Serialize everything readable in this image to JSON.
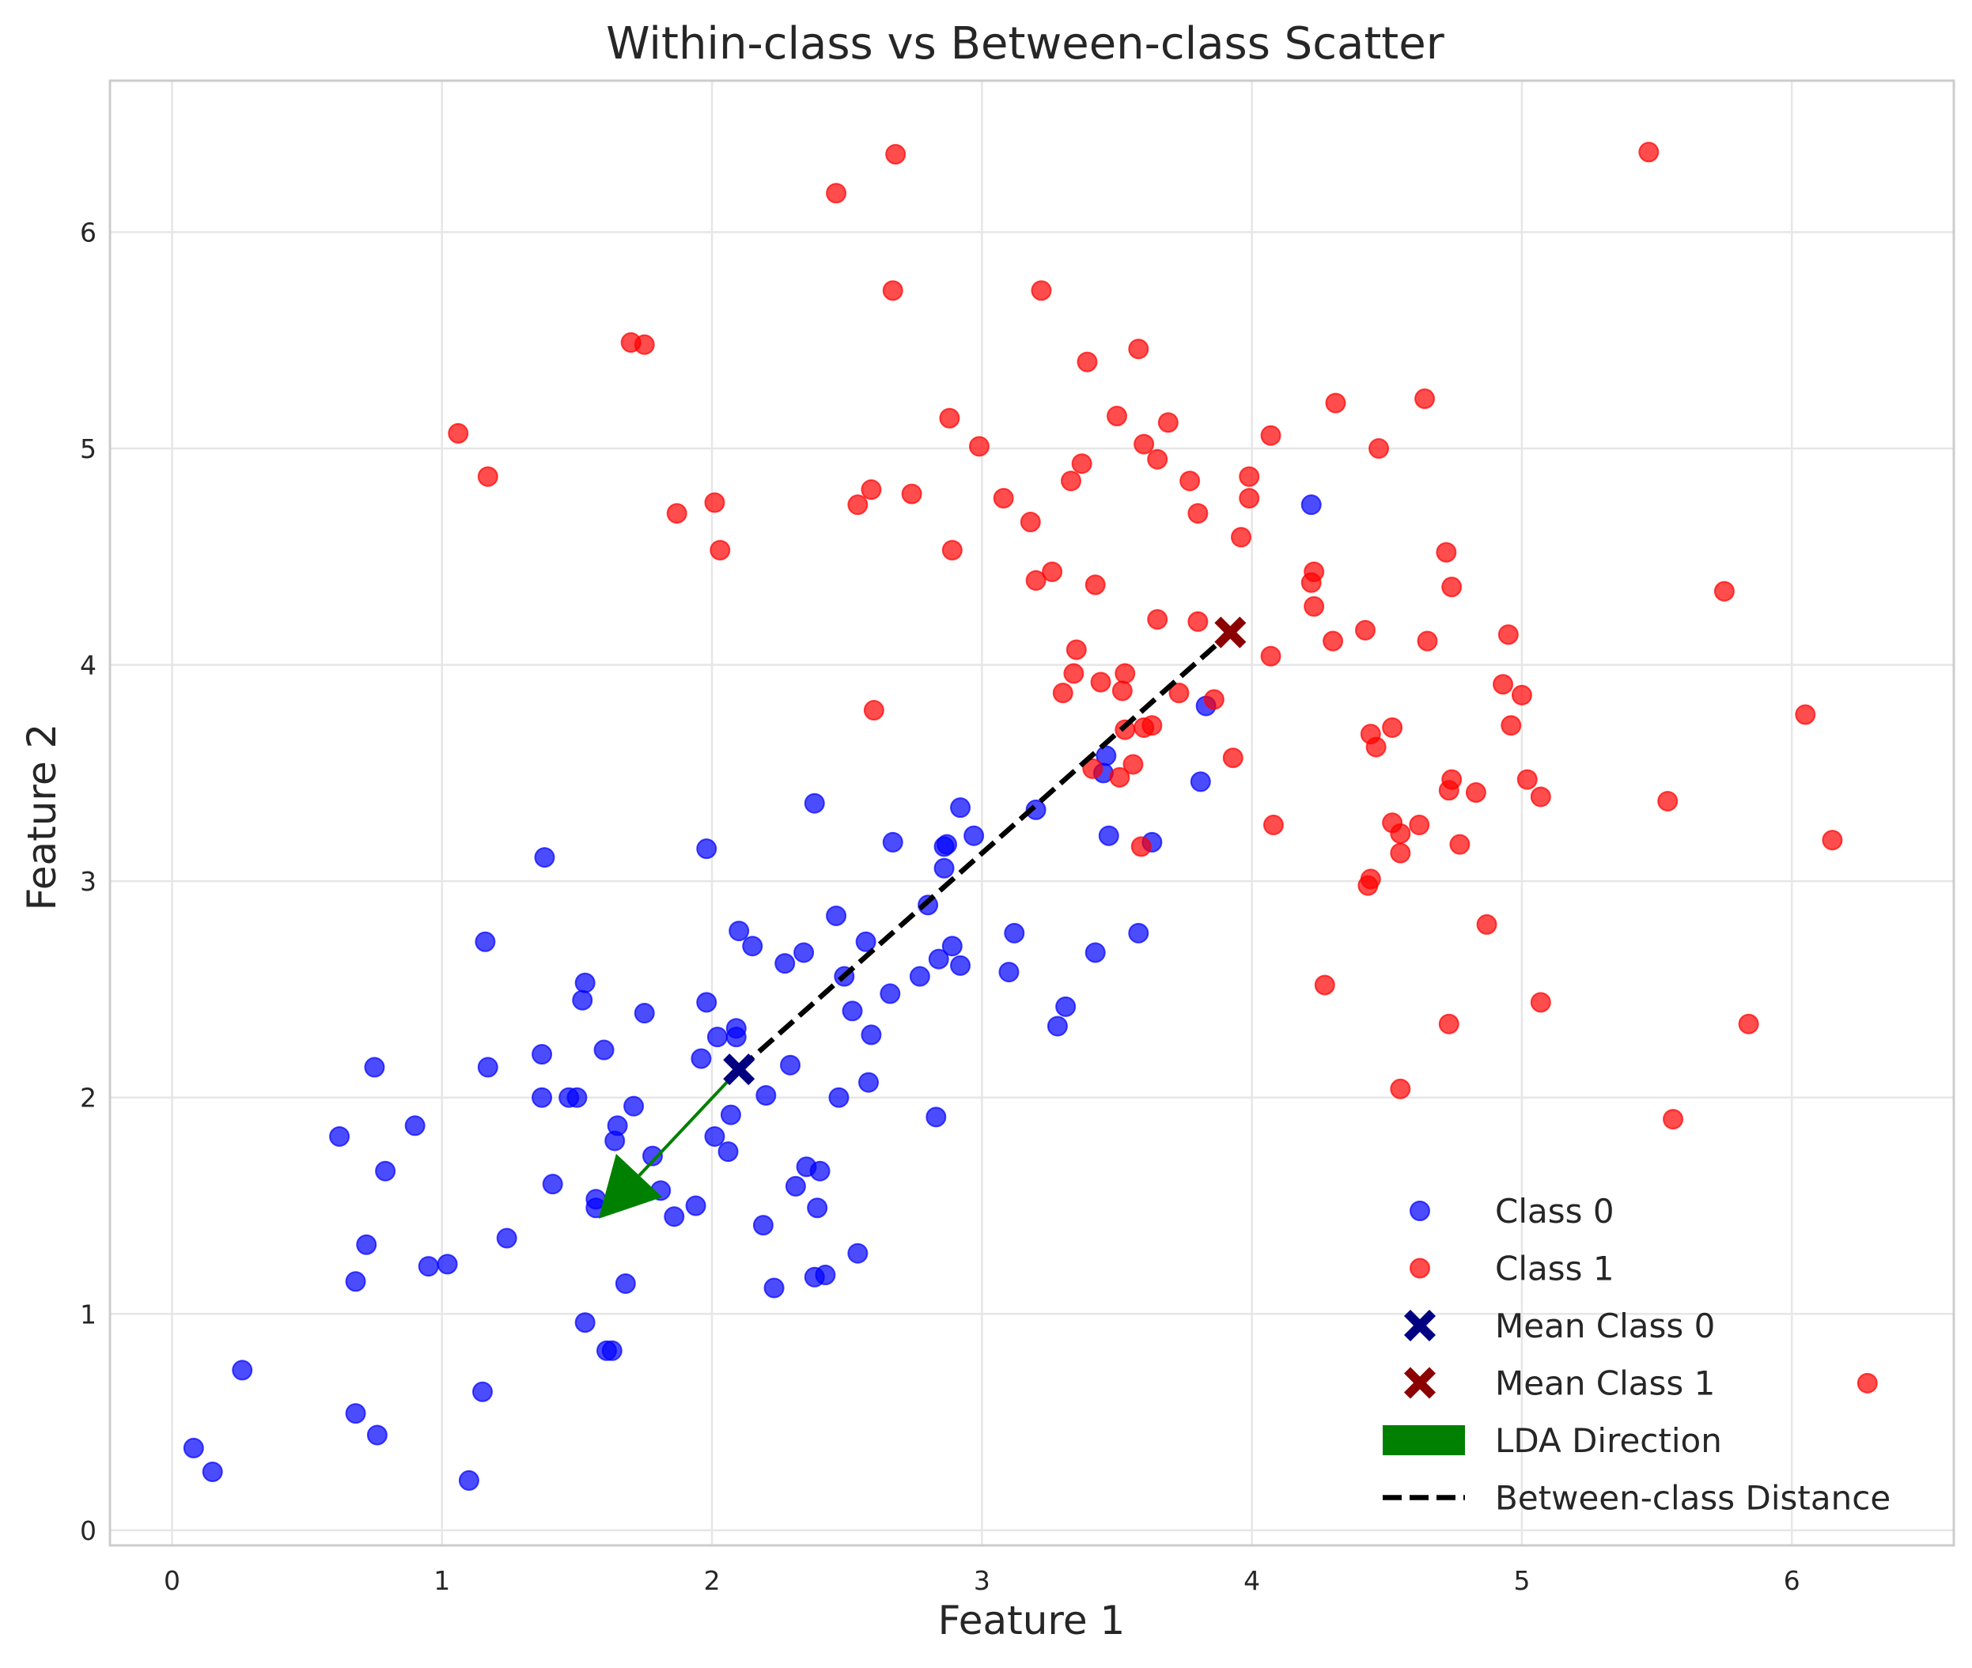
{
  "chart_data": {
    "type": "scatter",
    "title": "Within-class vs Between-class Scatter",
    "xlabel": "Feature 1",
    "ylabel": "Feature 2",
    "xlim": [
      -0.23,
      6.6
    ],
    "ylim": [
      -0.07,
      6.7
    ],
    "x_ticks": [
      0,
      1,
      2,
      3,
      4,
      5,
      6
    ],
    "y_ticks": [
      0,
      1,
      2,
      3,
      4,
      5,
      6
    ],
    "grid": true,
    "legend_position": "lower-right",
    "colors": {
      "class0": "#0000ff",
      "class1": "#ff0000",
      "mean0": "#000080",
      "mean1": "#8b0000",
      "lda": "#008000",
      "between": "#000000"
    },
    "legend": {
      "class0": "Class 0",
      "class1": "Class 1",
      "mean0": "Mean Class 0",
      "mean1": "Mean Class 1",
      "lda": "LDA Direction",
      "between": "Between-class Distance"
    },
    "series": [
      {
        "name": "Class 0",
        "points": [
          [
            0.08,
            0.38
          ],
          [
            0.15,
            0.27
          ],
          [
            0.26,
            0.74
          ],
          [
            0.62,
            1.82
          ],
          [
            0.68,
            1.15
          ],
          [
            0.68,
            0.54
          ],
          [
            0.72,
            1.32
          ],
          [
            0.75,
            2.14
          ],
          [
            0.76,
            0.44
          ],
          [
            0.79,
            1.66
          ],
          [
            0.9,
            1.87
          ],
          [
            0.95,
            1.22
          ],
          [
            1.02,
            1.23
          ],
          [
            1.1,
            0.23
          ],
          [
            1.15,
            0.64
          ],
          [
            1.16,
            2.72
          ],
          [
            1.17,
            2.14
          ],
          [
            1.24,
            1.35
          ],
          [
            1.37,
            2.2
          ],
          [
            1.37,
            2.0
          ],
          [
            1.38,
            3.11
          ],
          [
            1.41,
            1.6
          ],
          [
            1.47,
            2.0
          ],
          [
            1.5,
            2.0
          ],
          [
            1.53,
            2.53
          ],
          [
            1.52,
            2.45
          ],
          [
            1.53,
            0.96
          ],
          [
            1.57,
            1.53
          ],
          [
            1.57,
            1.49
          ],
          [
            1.6,
            2.22
          ],
          [
            1.61,
            0.83
          ],
          [
            1.63,
            0.83
          ],
          [
            1.64,
            1.8
          ],
          [
            1.65,
            1.87
          ],
          [
            1.68,
            1.14
          ],
          [
            1.71,
            1.96
          ],
          [
            1.75,
            2.39
          ],
          [
            1.78,
            1.73
          ],
          [
            1.81,
            1.57
          ],
          [
            1.86,
            1.45
          ],
          [
            1.94,
            1.5
          ],
          [
            1.96,
            2.18
          ],
          [
            1.98,
            2.44
          ],
          [
            1.98,
            3.15
          ],
          [
            2.01,
            1.82
          ],
          [
            2.02,
            2.28
          ],
          [
            2.06,
            1.75
          ],
          [
            2.07,
            1.92
          ],
          [
            2.09,
            2.28
          ],
          [
            2.09,
            2.32
          ],
          [
            2.1,
            2.77
          ],
          [
            2.15,
            2.7
          ],
          [
            2.19,
            1.41
          ],
          [
            2.2,
            2.01
          ],
          [
            2.23,
            1.12
          ],
          [
            2.27,
            2.62
          ],
          [
            2.29,
            2.15
          ],
          [
            2.31,
            1.59
          ],
          [
            2.34,
            2.67
          ],
          [
            2.35,
            1.68
          ],
          [
            2.38,
            3.36
          ],
          [
            2.38,
            1.17
          ],
          [
            2.39,
            1.49
          ],
          [
            2.4,
            1.66
          ],
          [
            2.42,
            1.18
          ],
          [
            2.46,
            2.84
          ],
          [
            2.47,
            2.0
          ],
          [
            2.49,
            2.56
          ],
          [
            2.52,
            2.4
          ],
          [
            2.54,
            1.28
          ],
          [
            2.57,
            2.72
          ],
          [
            2.58,
            2.07
          ],
          [
            2.59,
            2.29
          ],
          [
            2.66,
            2.48
          ],
          [
            2.67,
            3.18
          ],
          [
            2.77,
            2.56
          ],
          [
            2.8,
            2.89
          ],
          [
            2.83,
            1.91
          ],
          [
            2.84,
            2.64
          ],
          [
            2.86,
            3.16
          ],
          [
            2.86,
            3.06
          ],
          [
            2.87,
            3.17
          ],
          [
            2.89,
            2.7
          ],
          [
            2.92,
            2.61
          ],
          [
            2.92,
            3.34
          ],
          [
            2.97,
            3.21
          ],
          [
            3.1,
            2.58
          ],
          [
            3.12,
            2.76
          ],
          [
            3.2,
            3.33
          ],
          [
            3.28,
            2.33
          ],
          [
            3.31,
            2.42
          ],
          [
            3.42,
            2.67
          ],
          [
            3.45,
            3.5
          ],
          [
            3.46,
            3.58
          ],
          [
            3.47,
            3.21
          ],
          [
            3.58,
            2.76
          ],
          [
            3.63,
            3.18
          ],
          [
            3.81,
            3.46
          ],
          [
            3.83,
            3.81
          ],
          [
            4.22,
            4.74
          ]
        ]
      },
      {
        "name": "Class 1",
        "points": [
          [
            1.06,
            5.07
          ],
          [
            1.17,
            4.87
          ],
          [
            1.7,
            5.49
          ],
          [
            1.75,
            5.48
          ],
          [
            1.87,
            4.7
          ],
          [
            2.01,
            4.75
          ],
          [
            2.03,
            4.53
          ],
          [
            2.46,
            6.18
          ],
          [
            2.54,
            4.74
          ],
          [
            2.59,
            4.81
          ],
          [
            2.6,
            3.79
          ],
          [
            2.67,
            5.73
          ],
          [
            2.68,
            6.36
          ],
          [
            2.74,
            4.79
          ],
          [
            2.88,
            5.14
          ],
          [
            2.89,
            4.53
          ],
          [
            2.99,
            5.01
          ],
          [
            3.08,
            4.77
          ],
          [
            3.18,
            4.66
          ],
          [
            3.2,
            4.39
          ],
          [
            3.22,
            5.73
          ],
          [
            3.26,
            4.43
          ],
          [
            3.3,
            3.87
          ],
          [
            3.33,
            4.85
          ],
          [
            3.34,
            3.96
          ],
          [
            3.35,
            4.07
          ],
          [
            3.37,
            4.93
          ],
          [
            3.39,
            5.4
          ],
          [
            3.41,
            3.52
          ],
          [
            3.42,
            4.37
          ],
          [
            3.44,
            3.92
          ],
          [
            3.5,
            5.15
          ],
          [
            3.51,
            3.48
          ],
          [
            3.52,
            3.88
          ],
          [
            3.53,
            3.96
          ],
          [
            3.53,
            3.7
          ],
          [
            3.56,
            3.54
          ],
          [
            3.58,
            5.46
          ],
          [
            3.6,
            5.02
          ],
          [
            3.6,
            3.71
          ],
          [
            3.59,
            3.16
          ],
          [
            3.63,
            3.72
          ],
          [
            3.65,
            4.21
          ],
          [
            3.65,
            4.95
          ],
          [
            3.69,
            5.12
          ],
          [
            3.73,
            3.87
          ],
          [
            3.77,
            4.85
          ],
          [
            3.8,
            4.7
          ],
          [
            3.8,
            4.2
          ],
          [
            3.86,
            3.84
          ],
          [
            3.93,
            3.57
          ],
          [
            3.96,
            4.59
          ],
          [
            3.99,
            4.87
          ],
          [
            3.99,
            4.77
          ],
          [
            4.07,
            5.06
          ],
          [
            4.07,
            4.04
          ],
          [
            4.08,
            3.26
          ],
          [
            4.22,
            4.38
          ],
          [
            4.23,
            4.43
          ],
          [
            4.23,
            4.27
          ],
          [
            4.27,
            2.52
          ],
          [
            4.3,
            4.11
          ],
          [
            4.31,
            5.21
          ],
          [
            4.42,
            4.16
          ],
          [
            4.43,
            2.98
          ],
          [
            4.44,
            3.01
          ],
          [
            4.44,
            3.68
          ],
          [
            4.46,
            3.62
          ],
          [
            4.47,
            5.0
          ],
          [
            4.52,
            3.71
          ],
          [
            4.52,
            3.27
          ],
          [
            4.55,
            3.22
          ],
          [
            4.55,
            3.13
          ],
          [
            4.55,
            2.04
          ],
          [
            4.62,
            3.26
          ],
          [
            4.64,
            5.23
          ],
          [
            4.65,
            4.11
          ],
          [
            4.72,
            4.52
          ],
          [
            4.73,
            3.42
          ],
          [
            4.73,
            2.34
          ],
          [
            4.74,
            4.36
          ],
          [
            4.74,
            3.47
          ],
          [
            4.77,
            3.17
          ],
          [
            4.83,
            3.41
          ],
          [
            4.87,
            2.8
          ],
          [
            4.93,
            3.91
          ],
          [
            4.95,
            4.14
          ],
          [
            4.96,
            3.72
          ],
          [
            5.0,
            3.86
          ],
          [
            5.02,
            3.47
          ],
          [
            5.07,
            3.39
          ],
          [
            5.07,
            2.44
          ],
          [
            5.47,
            6.37
          ],
          [
            5.54,
            3.37
          ],
          [
            5.56,
            1.9
          ],
          [
            5.75,
            4.34
          ],
          [
            5.84,
            2.34
          ],
          [
            6.05,
            3.77
          ],
          [
            6.15,
            3.19
          ],
          [
            6.28,
            0.68
          ]
        ]
      }
    ],
    "means": {
      "class0": [
        2.1,
        2.13
      ],
      "class1": [
        3.92,
        4.15
      ]
    },
    "lda_arrow": {
      "from": [
        2.1,
        2.13
      ],
      "to": [
        1.58,
        1.44
      ]
    }
  }
}
